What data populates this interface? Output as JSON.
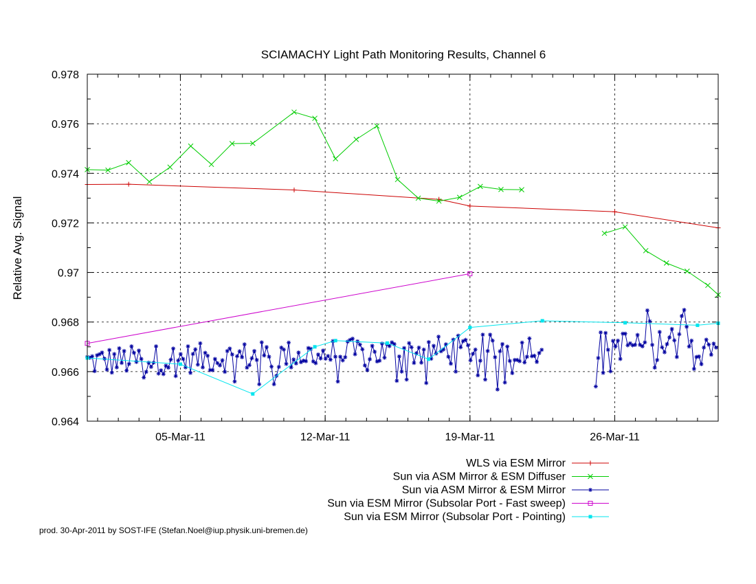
{
  "chart_data": {
    "type": "line",
    "title": "SCIAMACHY Light Path Monitoring Results, Channel 6",
    "xlabel": "",
    "ylabel": "Relative Avg. Signal",
    "x_unit": "days",
    "xlim": [
      "2011-02-28T12:00",
      "2011-03-31T00:00"
    ],
    "ylim": [
      0.964,
      0.978
    ],
    "yticks": [
      0.964,
      0.966,
      0.968,
      0.97,
      0.972,
      0.974,
      0.976,
      0.978
    ],
    "ytick_labels": [
      "0.964",
      "0.966",
      "0.968",
      "0.97",
      "0.972",
      "0.974",
      "0.976",
      "0.978"
    ],
    "xticks": [
      "2011-03-05",
      "2011-03-12",
      "2011-03-19",
      "2011-03-26"
    ],
    "xtick_labels": [
      "05-Mar-11",
      "12-Mar-11",
      "19-Mar-11",
      "26-Mar-11"
    ],
    "grid": true,
    "legend_position": "bottom-right",
    "footer": "prod. 30-Apr-2011 by SOST-IFE (Stefan.Noel@iup.physik.uni-bremen.de)",
    "series": [
      {
        "name": "WLS via ESM Mirror",
        "color": "#cc0000",
        "marker": "plus",
        "x": [
          "2011-02-28T12:00",
          "2011-03-02T12:00",
          "2011-03-10T12:00",
          "2011-03-17T12:00",
          "2011-03-19T00:00",
          "2011-03-26T00:00",
          "2011-03-31T00:00"
        ],
        "y": [
          0.97355,
          0.97356,
          0.97333,
          0.97295,
          0.97268,
          0.97245,
          0.9718
        ]
      },
      {
        "name": "Sun via ASM Mirror & ESM Diffuser",
        "color": "#00cc00",
        "marker": "cross",
        "x": [
          "2011-02-28T12:00",
          "2011-03-01T12:00",
          "2011-03-02T12:00",
          "2011-03-03T12:00",
          "2011-03-04T12:00",
          "2011-03-05T12:00",
          "2011-03-06T12:00",
          "2011-03-07T12:00",
          "2011-03-08T12:00",
          "2011-03-10T12:00",
          "2011-03-11T12:00",
          "2011-03-12T12:00",
          "2011-03-13T12:00",
          "2011-03-14T12:00",
          "2011-03-15T12:00",
          "2011-03-16T12:00",
          "2011-03-17T12:00",
          "2011-03-18T12:00",
          "2011-03-19T12:00",
          "2011-03-20T12:00",
          "2011-03-21T12:00",
          "2011-03-22T12:00",
          null,
          "2011-03-25T12:00",
          "2011-03-26T12:00",
          "2011-03-27T12:00",
          "2011-03-28T12:00",
          "2011-03-29T12:00",
          "2011-03-30T12:00",
          "2011-03-31T00:00"
        ],
        "y": [
          0.97415,
          0.97413,
          0.97443,
          0.97366,
          0.97425,
          0.9751,
          0.97436,
          0.9752,
          0.97521,
          0.97647,
          0.97622,
          0.97459,
          0.97537,
          0.97591,
          0.97375,
          0.973,
          0.97288,
          0.97303,
          0.97347,
          0.97335,
          0.97334,
          null,
          null,
          0.97158,
          0.97184,
          0.97088,
          0.97038,
          0.97005,
          0.96948,
          0.9691
        ]
      },
      {
        "name": "Sun via ASM Mirror & ESM Mirror",
        "color": "#0000a0",
        "marker": "star",
        "gaps": [
          [
            "2011-03-22T12:00",
            "2011-03-25T00:00"
          ]
        ]
      },
      {
        "name": "Sun via ESM Mirror (Subsolar Port - Fast sweep)",
        "color": "#cc00cc",
        "marker": "square",
        "x": [
          "2011-02-28T12:00",
          "2011-03-19T00:00"
        ],
        "y": [
          0.96714,
          0.96995
        ]
      },
      {
        "name": "Sun via ESM Mirror (Subsolar Port - Pointing)",
        "color": "#00e5ee",
        "marker": "filled-square",
        "x": [
          "2011-02-28T12:00",
          "2011-03-05T00:00",
          "2011-03-08T12:00",
          "2011-03-11T12:00",
          "2011-03-12T12:00",
          "2011-03-15T00:00",
          "2011-03-17T00:00",
          "2011-03-19T00:00",
          "2011-03-22T12:00",
          "2011-03-26T12:00",
          "2011-03-30T00:00",
          "2011-03-31T00:00"
        ],
        "y": [
          0.96655,
          0.9663,
          0.9651,
          0.967,
          0.96725,
          0.96715,
          0.9665,
          0.96778,
          0.96805,
          0.96797,
          0.96787,
          0.96795
        ]
      }
    ]
  }
}
